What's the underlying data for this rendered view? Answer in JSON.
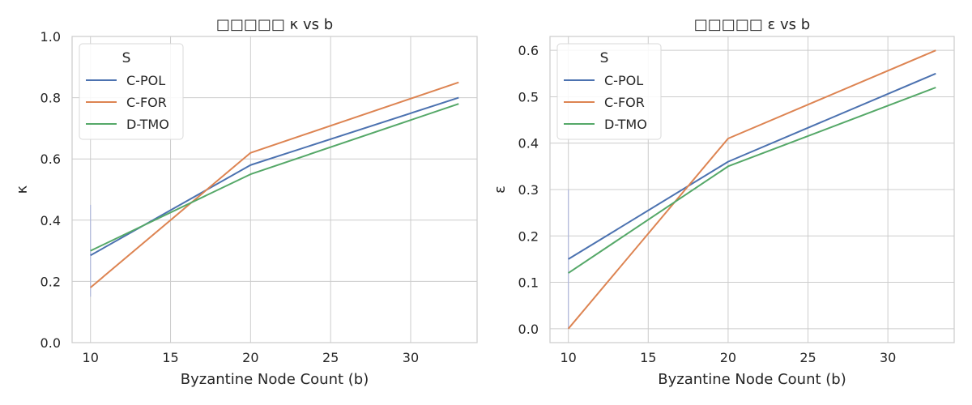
{
  "chart_data": [
    {
      "type": "line",
      "title": "□□□□□ κ vs b",
      "xlabel": "Byzantine Node Count (b)",
      "ylabel": "κ",
      "xlim": [
        8.85,
        34.15
      ],
      "ylim": [
        0.0,
        1.0
      ],
      "xticks": [
        10,
        15,
        20,
        25,
        30
      ],
      "yticks": [
        0.0,
        0.2,
        0.4,
        0.6,
        0.8,
        1.0
      ],
      "ytick_labels": [
        "0.0",
        "0.2",
        "0.4",
        "0.6",
        "0.8",
        "1.0"
      ],
      "x": [
        10,
        20,
        33
      ],
      "legend": {
        "title": "S",
        "position": "upper-left"
      },
      "series": [
        {
          "name": "C-POL",
          "color": "#4c72b0",
          "values": [
            0.285,
            0.58,
            0.8
          ]
        },
        {
          "name": "C-FOR",
          "color": "#dd8452",
          "values": [
            0.18,
            0.62,
            0.85
          ]
        },
        {
          "name": "D-TMO",
          "color": "#55a868",
          "values": [
            0.3,
            0.55,
            0.78
          ]
        }
      ],
      "error_bar": {
        "x": 10,
        "low": 0.15,
        "high": 0.45,
        "color": "#b0b8dc"
      }
    },
    {
      "type": "line",
      "title": "□□□□□ ε vs b",
      "xlabel": "Byzantine Node Count (b)",
      "ylabel": "ε",
      "xlim": [
        8.85,
        34.15
      ],
      "ylim": [
        -0.03,
        0.63
      ],
      "xticks": [
        10,
        15,
        20,
        25,
        30
      ],
      "yticks": [
        0.0,
        0.1,
        0.2,
        0.3,
        0.4,
        0.5,
        0.6
      ],
      "ytick_labels": [
        "0.0",
        "0.1",
        "0.2",
        "0.3",
        "0.4",
        "0.5",
        "0.6"
      ],
      "x": [
        10,
        20,
        33
      ],
      "legend": {
        "title": "S",
        "position": "upper-left"
      },
      "series": [
        {
          "name": "C-POL",
          "color": "#4c72b0",
          "values": [
            0.15,
            0.36,
            0.55
          ]
        },
        {
          "name": "C-FOR",
          "color": "#dd8452",
          "values": [
            0.0,
            0.41,
            0.6
          ]
        },
        {
          "name": "D-TMO",
          "color": "#55a868",
          "values": [
            0.12,
            0.35,
            0.52
          ]
        }
      ],
      "error_bar": {
        "x": 10,
        "low": 0.0,
        "high": 0.3,
        "color": "#b0b8dc"
      }
    }
  ]
}
